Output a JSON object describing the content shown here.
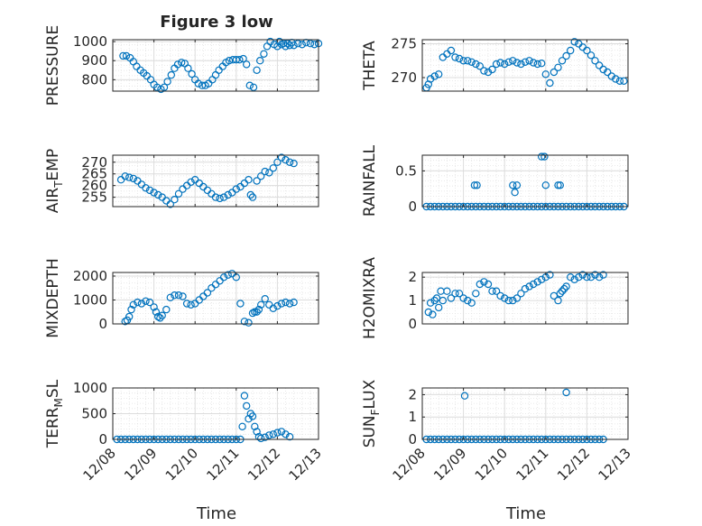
{
  "figure": {
    "title": "Figure 3 low",
    "xlabel": "Time",
    "xticklabels": [
      "12/08",
      "12/09",
      "12/10",
      "12/11",
      "12/12",
      "12/13"
    ],
    "marker_color": "#0072BD"
  },
  "chart_data": [
    {
      "type": "scatter",
      "title": "Figure 3 low",
      "ylabel": "PRESSURE",
      "xlabel": "",
      "ylim": [
        740,
        1010
      ],
      "yticks": [
        800,
        900,
        1000
      ],
      "yticklabels": [
        "800",
        "900",
        "1000"
      ],
      "grid": true,
      "series": [
        {
          "x": [
            0.25,
            0.33,
            0.42,
            0.5,
            0.58,
            0.67,
            0.75,
            0.83,
            0.92,
            1.0,
            1.08,
            1.17,
            1.25,
            1.33,
            1.42,
            1.5,
            1.58,
            1.67,
            1.75,
            1.83,
            1.92,
            2.0,
            2.08,
            2.17,
            2.25,
            2.33,
            2.42,
            2.5,
            2.58,
            2.67,
            2.75,
            2.83,
            2.92,
            3.0,
            3.08,
            3.17,
            3.25,
            3.33,
            3.42,
            3.5,
            3.58,
            3.67,
            3.75,
            3.83,
            3.92,
            4.0,
            4.05,
            4.1,
            4.15,
            4.2,
            4.25,
            4.3,
            4.35,
            4.4,
            4.5,
            4.6,
            4.7,
            4.8,
            4.9,
            5.0
          ],
          "y": [
            925,
            925,
            915,
            895,
            870,
            850,
            835,
            820,
            800,
            775,
            760,
            750,
            760,
            790,
            825,
            860,
            880,
            890,
            885,
            860,
            830,
            800,
            780,
            770,
            770,
            780,
            800,
            825,
            850,
            870,
            890,
            900,
            905,
            905,
            905,
            910,
            880,
            770,
            760,
            850,
            900,
            935,
            975,
            1000,
            985,
            975,
            1000,
            985,
            990,
            975,
            990,
            980,
            995,
            980,
            990,
            985,
            995,
            990,
            985,
            990
          ]
        }
      ]
    },
    {
      "type": "scatter",
      "ylabel": "THETA",
      "ylim": [
        268,
        275.6
      ],
      "yticks": [
        270,
        275
      ],
      "yticklabels": [
        "270",
        "275"
      ],
      "grid": true,
      "series": [
        {
          "x": [
            0.1,
            0.15,
            0.2,
            0.3,
            0.4,
            0.5,
            0.6,
            0.7,
            0.8,
            0.9,
            1.0,
            1.1,
            1.2,
            1.3,
            1.4,
            1.5,
            1.6,
            1.7,
            1.8,
            1.9,
            2.0,
            2.1,
            2.2,
            2.3,
            2.4,
            2.5,
            2.6,
            2.7,
            2.8,
            2.9,
            3.0,
            3.1,
            3.2,
            3.3,
            3.4,
            3.5,
            3.6,
            3.7,
            3.8,
            3.9,
            4.0,
            4.1,
            4.2,
            4.3,
            4.4,
            4.5,
            4.6,
            4.7,
            4.8,
            4.9
          ],
          "y": [
            268.5,
            269.0,
            269.8,
            270.2,
            270.5,
            273.0,
            273.5,
            274.0,
            273.0,
            272.8,
            272.5,
            272.5,
            272.3,
            272.0,
            271.7,
            271.0,
            270.8,
            271.2,
            272.0,
            272.2,
            272.0,
            272.3,
            272.5,
            272.2,
            272.0,
            272.3,
            272.5,
            272.2,
            272.0,
            272.1,
            270.5,
            269.2,
            270.8,
            271.5,
            272.5,
            273.2,
            274.0,
            275.3,
            275.0,
            274.5,
            274.0,
            273.3,
            272.5,
            271.8,
            271.2,
            270.8,
            270.2,
            269.8,
            269.5,
            269.5
          ]
        }
      ]
    },
    {
      "type": "scatter",
      "ylabel": "AIR_TEMP",
      "ylim": [
        251,
        273
      ],
      "yticks": [
        255,
        260,
        265,
        270
      ],
      "yticklabels": [
        "255",
        "260",
        "265",
        "270"
      ],
      "grid": true,
      "series": [
        {
          "x": [
            0.2,
            0.3,
            0.4,
            0.5,
            0.6,
            0.7,
            0.8,
            0.9,
            1.0,
            1.1,
            1.2,
            1.3,
            1.4,
            1.5,
            1.6,
            1.7,
            1.8,
            1.9,
            2.0,
            2.1,
            2.2,
            2.3,
            2.4,
            2.5,
            2.6,
            2.7,
            2.8,
            2.9,
            3.0,
            3.1,
            3.2,
            3.3,
            3.35,
            3.4,
            3.5,
            3.6,
            3.7,
            3.8,
            3.9,
            4.0,
            4.1,
            4.2,
            4.3,
            4.4
          ],
          "y": [
            262.5,
            264.0,
            263.5,
            263.0,
            262.0,
            260.5,
            259.0,
            258.0,
            257.0,
            256.0,
            255.0,
            253.5,
            252.0,
            254.0,
            256.5,
            258.5,
            260.0,
            261.5,
            262.5,
            261.0,
            259.5,
            258.0,
            256.5,
            255.0,
            254.5,
            255.0,
            256.0,
            257.0,
            258.5,
            259.5,
            261.0,
            262.5,
            256.0,
            255.0,
            262.0,
            264.0,
            266.0,
            265.5,
            267.5,
            270.0,
            272.0,
            271.0,
            270.0,
            269.5
          ]
        }
      ]
    },
    {
      "type": "scatter",
      "ylabel": "RAINFALL",
      "ylim": [
        0,
        0.72
      ],
      "yticks": [
        0,
        0.5
      ],
      "yticklabels": [
        "0",
        "0.5"
      ],
      "grid": true,
      "series": [
        {
          "x": [
            0.1,
            0.2,
            0.3,
            0.4,
            0.5,
            0.6,
            0.7,
            0.8,
            0.9,
            1.0,
            1.1,
            1.2,
            1.3,
            1.4,
            1.5,
            1.6,
            1.7,
            1.8,
            1.9,
            2.0,
            2.1,
            2.2,
            2.3,
            2.4,
            2.5,
            2.6,
            2.7,
            2.8,
            2.9,
            3.0,
            3.1,
            3.2,
            3.3,
            3.4,
            3.5,
            3.6,
            3.7,
            3.8,
            3.9,
            4.0,
            4.1,
            4.2,
            4.3,
            4.4,
            4.5,
            4.6,
            4.7,
            4.8,
            4.9,
            1.27,
            1.33,
            2.2,
            2.25,
            2.3,
            2.9,
            2.97,
            3.0,
            3.3,
            3.35
          ],
          "y": [
            0,
            0,
            0,
            0,
            0,
            0,
            0,
            0,
            0,
            0,
            0,
            0,
            0,
            0,
            0,
            0,
            0,
            0,
            0,
            0,
            0,
            0,
            0,
            0,
            0,
            0,
            0,
            0,
            0,
            0,
            0,
            0,
            0,
            0,
            0,
            0,
            0,
            0,
            0,
            0,
            0,
            0,
            0,
            0,
            0,
            0,
            0,
            0,
            0,
            0.3,
            0.3,
            0.3,
            0.2,
            0.3,
            0.7,
            0.7,
            0.3,
            0.3,
            0.3
          ]
        }
      ]
    },
    {
      "type": "scatter",
      "ylabel": "MIXDEPTH",
      "ylim": [
        0,
        2150
      ],
      "yticks": [
        0,
        1000,
        2000
      ],
      "yticklabels": [
        "0",
        "1000",
        "2000"
      ],
      "grid": true,
      "series": [
        {
          "x": [
            0.3,
            0.35,
            0.4,
            0.45,
            0.5,
            0.6,
            0.7,
            0.8,
            0.9,
            1.0,
            1.05,
            1.1,
            1.15,
            1.2,
            1.3,
            1.4,
            1.5,
            1.6,
            1.7,
            1.8,
            1.9,
            2.0,
            2.1,
            2.2,
            2.3,
            2.4,
            2.5,
            2.6,
            2.7,
            2.8,
            2.9,
            3.0,
            3.1,
            3.2,
            3.3,
            3.4,
            3.45,
            3.5,
            3.55,
            3.6,
            3.7,
            3.8,
            3.9,
            4.0,
            4.1,
            4.2,
            4.3,
            4.4
          ],
          "y": [
            100,
            150,
            300,
            600,
            800,
            900,
            850,
            950,
            900,
            700,
            500,
            300,
            250,
            350,
            600,
            1100,
            1200,
            1200,
            1150,
            850,
            800,
            850,
            1000,
            1150,
            1300,
            1500,
            1650,
            1800,
            1950,
            2050,
            2100,
            1950,
            850,
            100,
            50,
            450,
            500,
            500,
            600,
            800,
            1050,
            800,
            650,
            750,
            850,
            900,
            850,
            900
          ]
        }
      ]
    },
    {
      "type": "scatter",
      "ylabel": "H2OMIXRA",
      "ylim": [
        0,
        2.2
      ],
      "yticks": [
        0,
        1,
        2
      ],
      "yticklabels": [
        "0",
        "1",
        "2"
      ],
      "grid": true,
      "series": [
        {
          "x": [
            0.15,
            0.2,
            0.25,
            0.3,
            0.35,
            0.4,
            0.45,
            0.5,
            0.6,
            0.7,
            0.8,
            0.9,
            1.0,
            1.1,
            1.2,
            1.3,
            1.4,
            1.5,
            1.6,
            1.7,
            1.8,
            1.9,
            2.0,
            2.1,
            2.2,
            2.3,
            2.4,
            2.5,
            2.6,
            2.7,
            2.8,
            2.9,
            3.0,
            3.1,
            3.2,
            3.3,
            3.35,
            3.4,
            3.45,
            3.5,
            3.6,
            3.7,
            3.8,
            3.9,
            4.0,
            4.1,
            4.2,
            4.3,
            4.4
          ],
          "y": [
            0.5,
            0.9,
            0.4,
            1.0,
            1.1,
            0.7,
            1.4,
            1.0,
            1.4,
            1.1,
            1.3,
            1.3,
            1.1,
            1.0,
            0.9,
            1.3,
            1.7,
            1.8,
            1.7,
            1.4,
            1.4,
            1.2,
            1.1,
            1.0,
            1.0,
            1.1,
            1.3,
            1.5,
            1.6,
            1.7,
            1.8,
            1.9,
            2.0,
            2.1,
            1.2,
            1.0,
            1.3,
            1.4,
            1.5,
            1.6,
            2.0,
            1.9,
            2.0,
            2.1,
            2.0,
            2.0,
            2.1,
            2.0,
            2.1
          ]
        }
      ]
    },
    {
      "type": "scatter",
      "ylabel": "TERR_MSL",
      "ylim": [
        0,
        1000
      ],
      "yticks": [
        0,
        500,
        1000
      ],
      "yticklabels": [
        "0",
        "500",
        "1000"
      ],
      "grid": true,
      "series": [
        {
          "x": [
            0.1,
            0.2,
            0.3,
            0.4,
            0.5,
            0.6,
            0.7,
            0.8,
            0.9,
            1.0,
            1.1,
            1.2,
            1.3,
            1.4,
            1.5,
            1.6,
            1.7,
            1.8,
            1.9,
            2.0,
            2.1,
            2.2,
            2.3,
            2.4,
            2.5,
            2.6,
            2.7,
            2.8,
            2.9,
            3.0,
            3.1,
            3.15,
            3.2,
            3.25,
            3.3,
            3.35,
            3.4,
            3.45,
            3.5,
            3.55,
            3.6,
            3.7,
            3.8,
            3.9,
            4.0,
            4.1,
            4.2,
            4.3
          ],
          "y": [
            0,
            0,
            0,
            0,
            0,
            0,
            0,
            0,
            0,
            0,
            0,
            0,
            0,
            0,
            0,
            0,
            0,
            0,
            0,
            0,
            0,
            0,
            0,
            0,
            0,
            0,
            0,
            0,
            0,
            0,
            0,
            250,
            850,
            650,
            400,
            500,
            450,
            250,
            150,
            50,
            20,
            40,
            80,
            100,
            130,
            150,
            100,
            50
          ]
        }
      ]
    },
    {
      "type": "scatter",
      "ylabel": "SUN_FLUX",
      "ylim": [
        0,
        2.3
      ],
      "yticks": [
        0,
        1,
        2
      ],
      "yticklabels": [
        "0",
        "1",
        "2"
      ],
      "grid": true,
      "series": [
        {
          "x": [
            0.1,
            0.2,
            0.3,
            0.4,
            0.5,
            0.6,
            0.7,
            0.8,
            0.9,
            1.0,
            1.1,
            1.2,
            1.3,
            1.4,
            1.5,
            1.6,
            1.7,
            1.8,
            1.9,
            2.0,
            2.1,
            2.2,
            2.3,
            2.4,
            2.5,
            2.6,
            2.7,
            2.8,
            2.9,
            3.0,
            3.1,
            3.2,
            3.3,
            3.4,
            3.5,
            3.6,
            3.7,
            3.8,
            3.9,
            4.0,
            4.1,
            4.2,
            4.3,
            4.4,
            1.03,
            3.5
          ],
          "y": [
            0,
            0,
            0,
            0,
            0,
            0,
            0,
            0,
            0,
            0,
            0,
            0,
            0,
            0,
            0,
            0,
            0,
            0,
            0,
            0,
            0,
            0,
            0,
            0,
            0,
            0,
            0,
            0,
            0,
            0,
            0,
            0,
            0,
            0,
            0,
            0,
            0,
            0,
            0,
            0,
            0,
            0,
            0,
            0,
            1.95,
            2.1
          ]
        }
      ]
    }
  ]
}
